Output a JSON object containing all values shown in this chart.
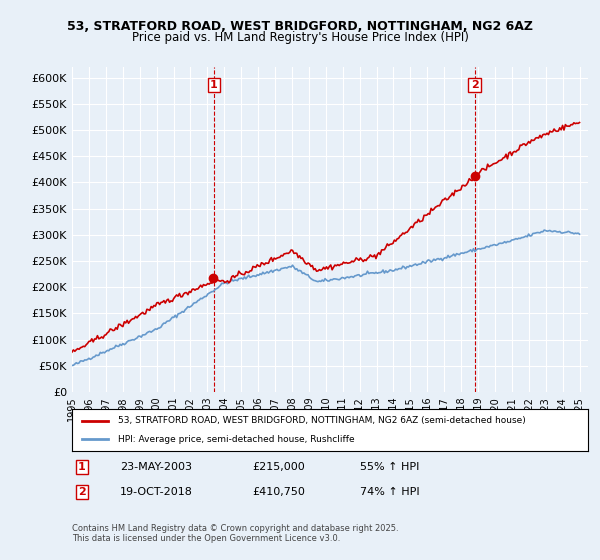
{
  "title1": "53, STRATFORD ROAD, WEST BRIDGFORD, NOTTINGHAM, NG2 6AZ",
  "title2": "Price paid vs. HM Land Registry's House Price Index (HPI)",
  "bg_color": "#e8f0f8",
  "plot_bg_color": "#e8f0f8",
  "red_color": "#cc0000",
  "blue_color": "#6699cc",
  "marker1_date_idx": 0.27,
  "marker2_date_idx": 0.785,
  "sale1_date": "23-MAY-2003",
  "sale1_price": 215000,
  "sale1_pct": "55% ↑ HPI",
  "sale2_date": "19-OCT-2018",
  "sale2_price": 410750,
  "sale2_pct": "74% ↑ HPI",
  "ylabel_prefix": "£",
  "legend1": "53, STRATFORD ROAD, WEST BRIDGFORD, NOTTINGHAM, NG2 6AZ (semi-detached house)",
  "legend2": "HPI: Average price, semi-detached house, Rushcliffe",
  "footer": "Contains HM Land Registry data © Crown copyright and database right 2025.\nThis data is licensed under the Open Government Licence v3.0.",
  "ylim": [
    0,
    620000
  ],
  "yticks": [
    0,
    50000,
    100000,
    150000,
    200000,
    250000,
    300000,
    350000,
    400000,
    450000,
    500000,
    550000,
    600000
  ],
  "year_start": 1995,
  "year_end": 2025
}
